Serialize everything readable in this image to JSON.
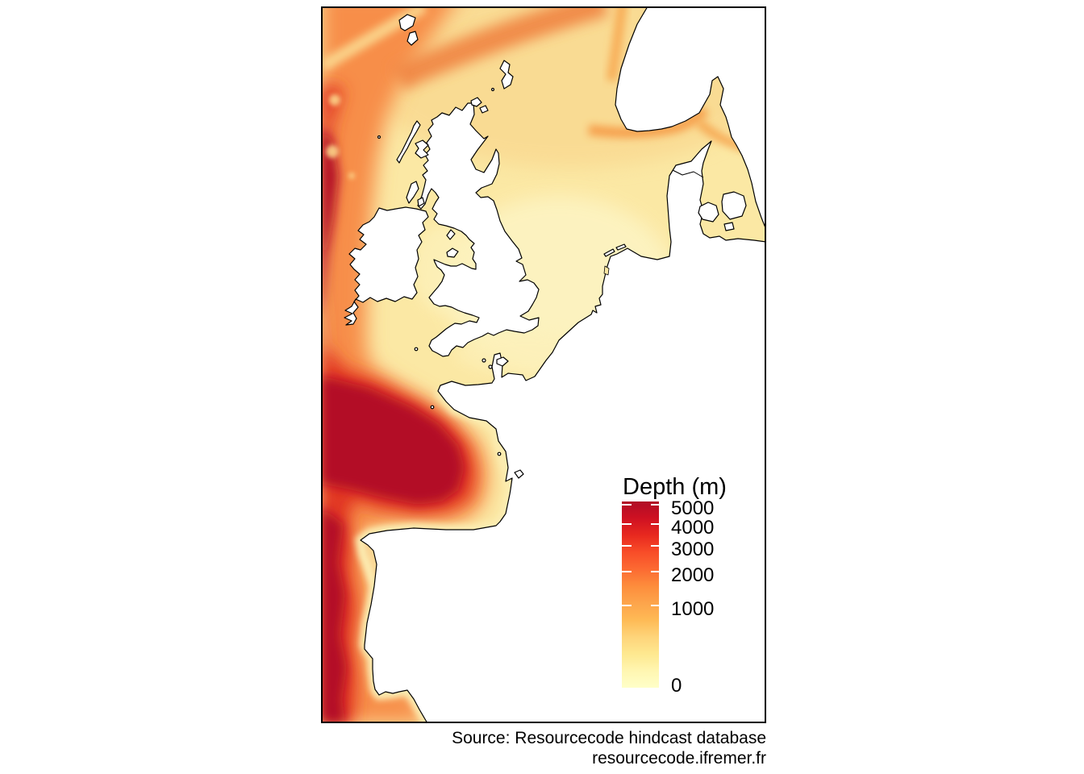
{
  "figure": {
    "kind": "bathymetry-map-figure"
  },
  "legend": {
    "title": "Depth (m)",
    "scale": {
      "type": "sqrt",
      "min": 0,
      "max": 5000
    },
    "ticks": [
      {
        "label": "5000",
        "value": 5000
      },
      {
        "label": "4000",
        "value": 4000
      },
      {
        "label": "3000",
        "value": 3000
      },
      {
        "label": "2000",
        "value": 2000
      },
      {
        "label": "1000",
        "value": 1000
      },
      {
        "label": "0",
        "value": 0
      }
    ],
    "colormap": [
      "#ffffc8",
      "#fff6b1",
      "#fee88f",
      "#fed47a",
      "#feba55",
      "#fda44b",
      "#fd8d3c",
      "#fc6a32",
      "#f84d28",
      "#e8291f",
      "#cf1122",
      "#b00d26"
    ]
  },
  "source": {
    "line1": "Source: Resourcecode hindcast database",
    "line2": "resourcecode.ifremer.fr"
  },
  "colors": {
    "land": "#ffffff",
    "coastline": "#000000",
    "frame": "#000000",
    "sea_shallow": "#fbe8a4",
    "sea_mid": "#f78e48",
    "sea_deep": "#e13522",
    "sea_deepest": "#b30d26",
    "tick_mark": "#ffffff",
    "text": "#000000"
  }
}
